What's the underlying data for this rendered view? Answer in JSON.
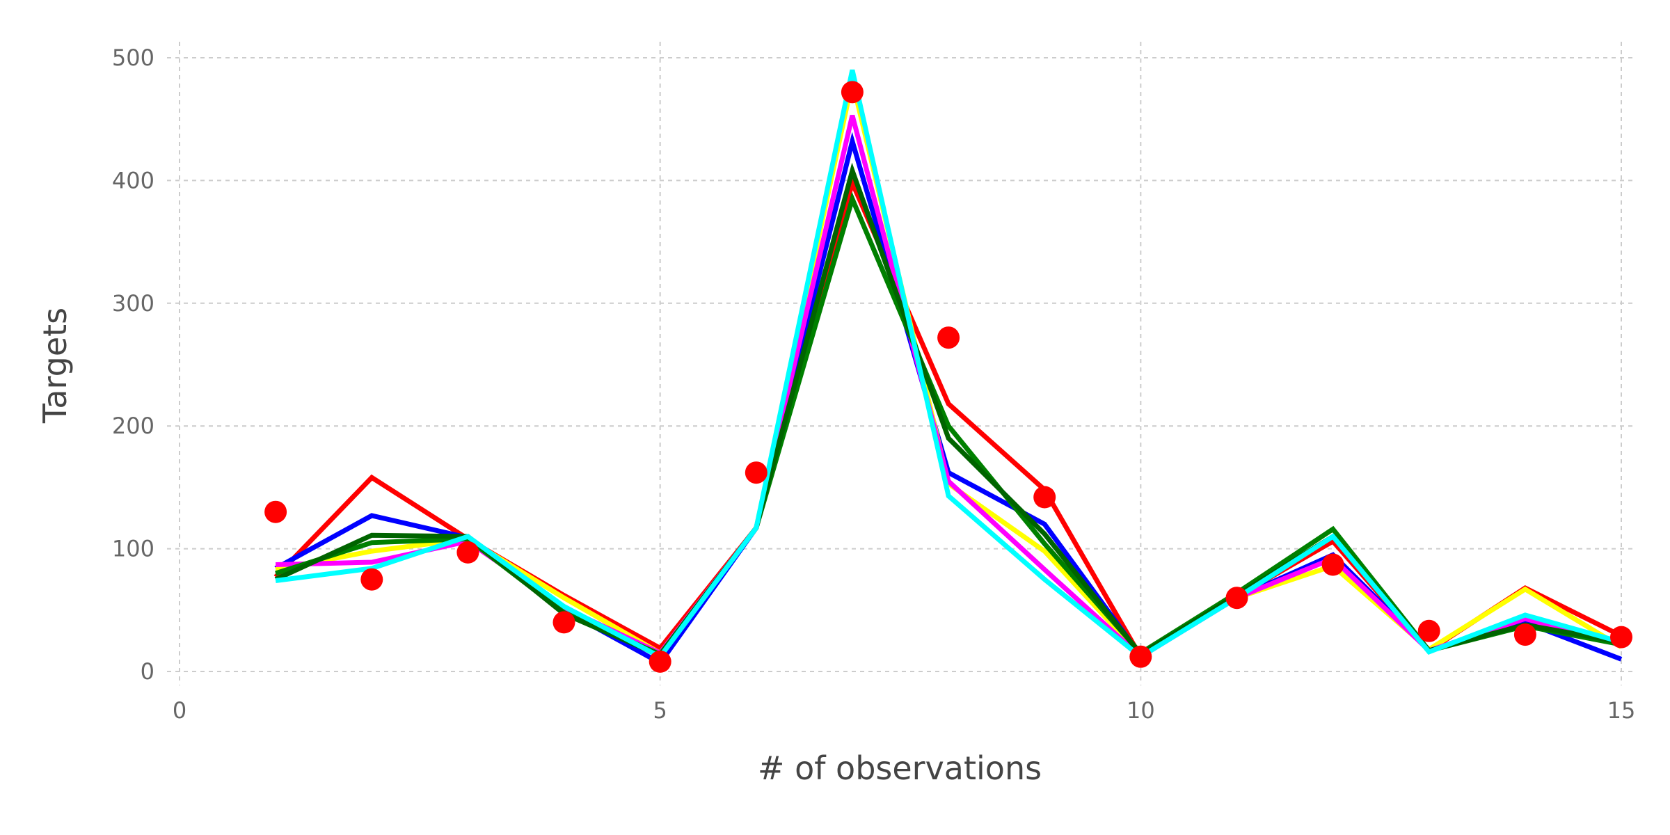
{
  "chart_data": {
    "type": "line",
    "title": "",
    "xlabel": "# of observations",
    "ylabel": "Targets",
    "xlim": [
      0,
      15
    ],
    "ylim": [
      0,
      500
    ],
    "xticks": [
      0,
      5,
      10,
      15
    ],
    "yticks": [
      0,
      100,
      200,
      300,
      400,
      500
    ],
    "grid": true,
    "x": [
      1,
      2,
      3,
      4,
      5,
      6,
      7,
      8,
      9,
      10,
      11,
      12,
      13,
      14,
      15
    ],
    "series": [
      {
        "color": "#ff0000",
        "values": [
          77,
          158,
          108,
          62,
          19,
          117,
          398,
          218,
          148,
          12,
          61,
          106,
          17,
          68,
          29
        ]
      },
      {
        "color": "#0000ff",
        "values": [
          84,
          127,
          109,
          50,
          7,
          117,
          432,
          162,
          120,
          13,
          60,
          95,
          17,
          40,
          10
        ]
      },
      {
        "color": "#ffff00",
        "values": [
          83,
          98,
          108,
          60,
          15,
          117,
          481,
          153,
          98,
          13,
          60,
          86,
          18,
          67,
          20
        ]
      },
      {
        "color": "#ff00ff",
        "values": [
          87,
          89,
          106,
          52,
          15,
          117,
          453,
          155,
          83,
          12,
          60,
          92,
          17,
          43,
          22
        ]
      },
      {
        "color": "#008000",
        "values": [
          80,
          105,
          108,
          48,
          14,
          117,
          385,
          200,
          104,
          15,
          64,
          116,
          17,
          37,
          22
        ]
      },
      {
        "color": "#006400",
        "values": [
          75,
          111,
          110,
          47,
          13,
          117,
          408,
          190,
          112,
          14,
          62,
          110,
          17,
          38,
          24
        ]
      },
      {
        "color": "#00ffff",
        "values": [
          74,
          84,
          110,
          53,
          12,
          117,
          490,
          143,
          75,
          12,
          60,
          110,
          16,
          46,
          24
        ]
      }
    ],
    "observations": {
      "color": "#ff0000",
      "x": [
        1,
        2,
        3,
        4,
        5,
        6,
        7,
        8,
        9,
        10,
        11,
        12,
        13,
        14,
        15
      ],
      "values": [
        130,
        75,
        97,
        40,
        8,
        162,
        472,
        272,
        142,
        12,
        60,
        87,
        33,
        30,
        28
      ]
    }
  }
}
